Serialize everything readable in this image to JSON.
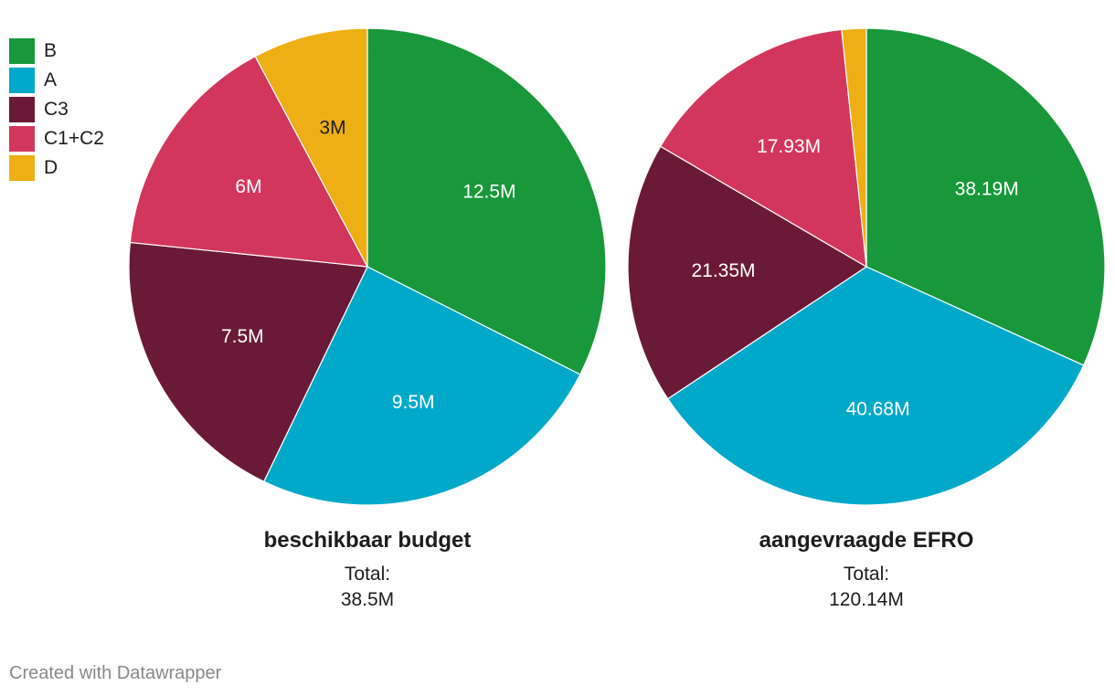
{
  "legend": [
    {
      "label": "B",
      "color": "#18983a"
    },
    {
      "label": "A",
      "color": "#00a9c9"
    },
    {
      "label": "C3",
      "color": "#6a1a37"
    },
    {
      "label": "C1+C2",
      "color": "#d3365d"
    },
    {
      "label": "D",
      "color": "#eeaf15"
    }
  ],
  "chart_data": [
    {
      "type": "pie",
      "title": "beschikbaar budget",
      "total_label": "Total:",
      "total_value": "38.5M",
      "slices": [
        {
          "category": "B",
          "value": 12.5,
          "label": "12.5M",
          "color": "#18983a"
        },
        {
          "category": "A",
          "value": 9.5,
          "label": "9.5M",
          "color": "#00a9c9"
        },
        {
          "category": "C3",
          "value": 7.5,
          "label": "7.5M",
          "color": "#6a1a37"
        },
        {
          "category": "C1+C2",
          "value": 6,
          "label": "6M",
          "color": "#d3365d"
        },
        {
          "category": "D",
          "value": 3,
          "label": "3M",
          "color": "#eeaf15"
        }
      ]
    },
    {
      "type": "pie",
      "title": "aangevraagde EFRO",
      "total_label": "Total:",
      "total_value": "120.14M",
      "slices": [
        {
          "category": "B",
          "value": 38.19,
          "label": "38.19M",
          "color": "#18983a"
        },
        {
          "category": "A",
          "value": 40.68,
          "label": "40.68M",
          "color": "#00a9c9"
        },
        {
          "category": "C3",
          "value": 21.35,
          "label": "21.35M",
          "color": "#6a1a37"
        },
        {
          "category": "C1+C2",
          "value": 17.93,
          "label": "17.93M",
          "color": "#d3365d"
        },
        {
          "category": "D",
          "value": 1.99,
          "label": "",
          "color": "#eeaf15"
        }
      ]
    }
  ],
  "footer": "Created with Datawrapper"
}
